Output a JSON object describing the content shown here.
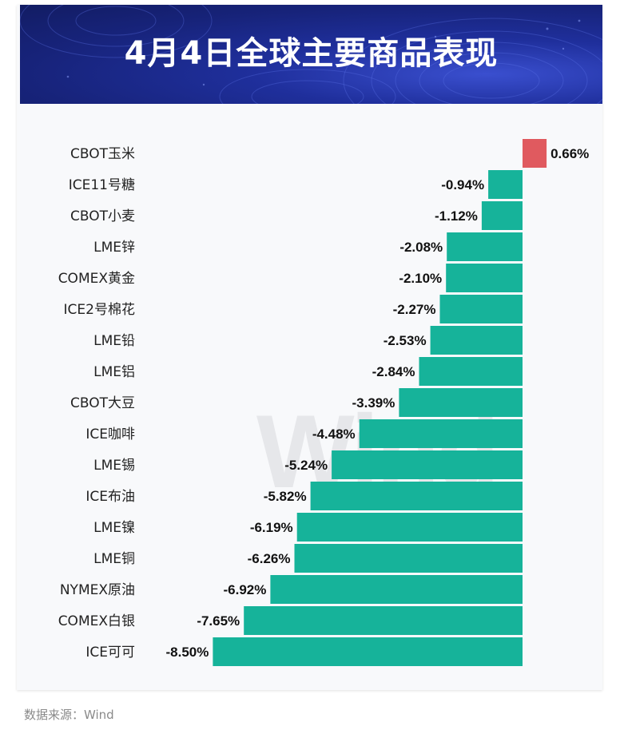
{
  "header": {
    "title": "4月4日全球主要商品表现"
  },
  "watermark": "Wind",
  "source": "数据来源：Wind",
  "colors": {
    "positive": "#e05a5f",
    "negative": "#16b39a",
    "banner": "#1a2680"
  },
  "chart_data": {
    "type": "bar",
    "orientation": "horizontal",
    "title": "4月4日全球主要商品表现",
    "categories": [
      "CBOT玉米",
      "ICE11号糖",
      "CBOT小麦",
      "LME锌",
      "COMEX黄金",
      "ICE2号棉花",
      "LME铅",
      "LME铝",
      "CBOT大豆",
      "ICE咖啡",
      "LME锡",
      "ICE布油",
      "LME镍",
      "LME铜",
      "NYMEX原油",
      "COMEX白银",
      "ICE可可"
    ],
    "values": [
      0.66,
      -0.94,
      -1.12,
      -2.08,
      -2.1,
      -2.27,
      -2.53,
      -2.84,
      -3.39,
      -4.48,
      -5.24,
      -5.82,
      -6.19,
      -6.26,
      -6.92,
      -7.65,
      -8.5
    ],
    "labels": [
      "0.66%",
      "-0.94%",
      "-1.12%",
      "-2.08%",
      "-2.10%",
      "-2.27%",
      "-2.53%",
      "-2.84%",
      "-3.39%",
      "-4.48%",
      "-5.24%",
      "-5.82%",
      "-6.19%",
      "-6.26%",
      "-6.92%",
      "-7.65%",
      "-8.50%"
    ],
    "unit": "%",
    "grid": false,
    "legend": "none"
  }
}
